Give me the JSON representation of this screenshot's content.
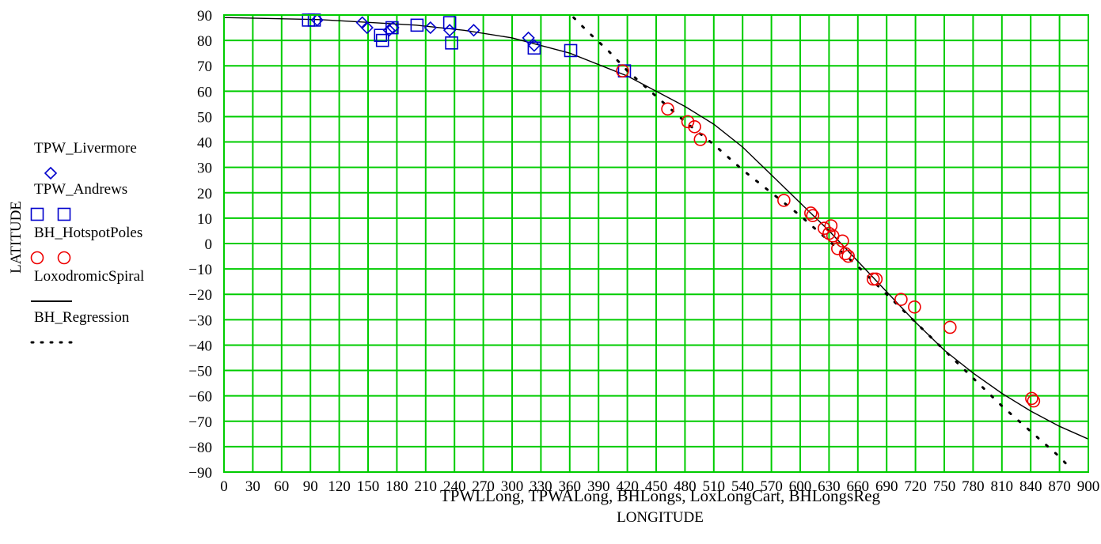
{
  "chart_data": {
    "type": "scatter",
    "xlabel": "LONGITUDE",
    "x_expression": "TPWLLong, TPWALong, BHLongs, LoxLongCart, BHLongsReg",
    "ylabel": "LATITUDE",
    "xlim": [
      0,
      900
    ],
    "ylim": [
      -90,
      90
    ],
    "x_ticks": [
      "0",
      "30",
      "60",
      "90",
      "120",
      "150",
      "180",
      "210",
      "240",
      "270",
      "300",
      "330",
      "360",
      "390",
      "420",
      "450",
      "480",
      "510",
      "540",
      "570",
      "600",
      "630",
      "660",
      "690",
      "720",
      "750",
      "780",
      "810",
      "840",
      "870",
      "900"
    ],
    "y_ticks": [
      "90",
      "80",
      "70",
      "60",
      "50",
      "40",
      "30",
      "20",
      "10",
      "0",
      "-10",
      "-20",
      "-30",
      "-40",
      "-50",
      "-60",
      "-70",
      "-80",
      "-90"
    ],
    "grid": true,
    "grid_color": "#00cc00",
    "legend_position": "left",
    "series": [
      {
        "name": "TPW_Livermore",
        "marker": "diamond",
        "color": "#0000cc",
        "points": [
          [
            97,
            88
          ],
          [
            144,
            87
          ],
          [
            149,
            85
          ],
          [
            172,
            84
          ],
          [
            176,
            85
          ],
          [
            215,
            85
          ],
          [
            235,
            84
          ],
          [
            260,
            84
          ],
          [
            317,
            81
          ],
          [
            323,
            78
          ]
        ]
      },
      {
        "name": "TPW_Andrews",
        "marker": "square",
        "color": "#0000cc",
        "points": [
          [
            88,
            88
          ],
          [
            94,
            88
          ],
          [
            163,
            82
          ],
          [
            165,
            80
          ],
          [
            175,
            85
          ],
          [
            201,
            86
          ],
          [
            235,
            87
          ],
          [
            237,
            79
          ],
          [
            323,
            77
          ],
          [
            361,
            76
          ],
          [
            417,
            68
          ]
        ]
      },
      {
        "name": "BH_HotspotPoles",
        "marker": "circle",
        "color": "#ee0000",
        "points": [
          [
            415,
            68
          ],
          [
            462,
            53
          ],
          [
            483,
            48
          ],
          [
            490,
            46
          ],
          [
            496,
            41
          ],
          [
            583,
            17
          ],
          [
            611,
            12
          ],
          [
            613,
            11
          ],
          [
            625,
            6
          ],
          [
            630,
            4
          ],
          [
            632,
            7
          ],
          [
            634,
            3
          ],
          [
            639,
            -2
          ],
          [
            644,
            1
          ],
          [
            647,
            -4
          ],
          [
            650,
            -5
          ],
          [
            676,
            -14
          ],
          [
            679,
            -14
          ],
          [
            705,
            -22
          ],
          [
            719,
            -25
          ],
          [
            756,
            -33
          ],
          [
            841,
            -61
          ],
          [
            843,
            -62
          ]
        ]
      },
      {
        "name": "LoxodromicSpiral",
        "marker": "solid-line",
        "color": "#000000",
        "points": [
          [
            0,
            89
          ],
          [
            100,
            88.2
          ],
          [
            200,
            86
          ],
          [
            250,
            84
          ],
          [
            300,
            81
          ],
          [
            360,
            75
          ],
          [
            420,
            66
          ],
          [
            480,
            54
          ],
          [
            510,
            47
          ],
          [
            540,
            38
          ],
          [
            570,
            27
          ],
          [
            600,
            16
          ],
          [
            630,
            5
          ],
          [
            660,
            -7
          ],
          [
            690,
            -19
          ],
          [
            720,
            -31
          ],
          [
            750,
            -42
          ],
          [
            780,
            -51
          ],
          [
            810,
            -59
          ],
          [
            840,
            -66
          ],
          [
            870,
            -72
          ],
          [
            900,
            -77
          ]
        ]
      },
      {
        "name": "BH_Regression",
        "marker": "dotted-line",
        "color": "#000000",
        "points": [
          [
            364,
            89
          ],
          [
            380,
            83
          ],
          [
            400,
            76
          ],
          [
            420,
            68
          ],
          [
            450,
            58
          ],
          [
            480,
            48
          ],
          [
            510,
            39
          ],
          [
            540,
            29
          ],
          [
            570,
            20
          ],
          [
            600,
            11
          ],
          [
            630,
            1
          ],
          [
            660,
            -9
          ],
          [
            690,
            -20
          ],
          [
            720,
            -31
          ],
          [
            750,
            -42
          ],
          [
            780,
            -53
          ],
          [
            810,
            -64
          ],
          [
            840,
            -74
          ],
          [
            870,
            -84
          ],
          [
            880,
            -88
          ]
        ]
      }
    ]
  }
}
